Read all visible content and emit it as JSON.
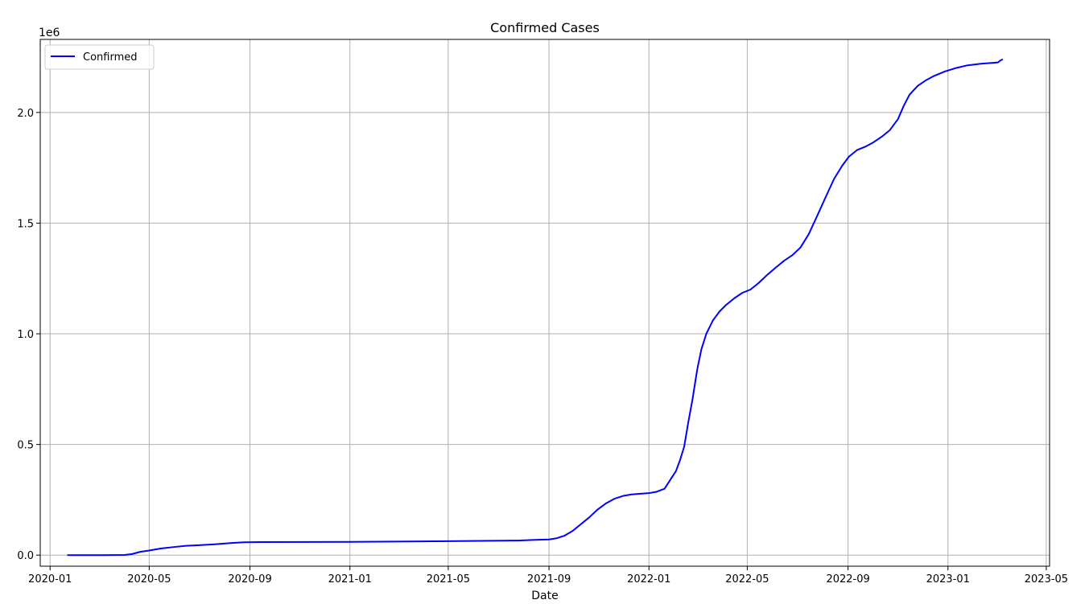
{
  "chart_data": {
    "type": "line",
    "title": "Confirmed Cases",
    "xlabel": "Date",
    "ylabel": "",
    "y_offset_label": "1e6",
    "y_multiplier": 1000000,
    "xlim": [
      "2019-12-20",
      "2023-05-05"
    ],
    "ylim": [
      -0.05,
      2.33
    ],
    "x_ticks": [
      "2020-01",
      "2020-05",
      "2020-09",
      "2021-01",
      "2021-05",
      "2021-09",
      "2022-01",
      "2022-05",
      "2022-09",
      "2023-01",
      "2023-05"
    ],
    "y_ticks": [
      "0.0",
      "0.5",
      "1.0",
      "1.5",
      "2.0"
    ],
    "grid": true,
    "legend_position": "top-left",
    "series": [
      {
        "name": "Confirmed",
        "color": "#0000ff",
        "points": [
          [
            "2020-01-22",
            0.0
          ],
          [
            "2020-03-01",
            0.0
          ],
          [
            "2020-04-01",
            0.001
          ],
          [
            "2020-04-10",
            0.005
          ],
          [
            "2020-04-20",
            0.015
          ],
          [
            "2020-05-01",
            0.021
          ],
          [
            "2020-05-15",
            0.03
          ],
          [
            "2020-06-01",
            0.037
          ],
          [
            "2020-06-15",
            0.042
          ],
          [
            "2020-07-01",
            0.045
          ],
          [
            "2020-07-20",
            0.049
          ],
          [
            "2020-08-10",
            0.055
          ],
          [
            "2020-08-25",
            0.058
          ],
          [
            "2020-09-15",
            0.059
          ],
          [
            "2021-01-01",
            0.06
          ],
          [
            "2021-05-01",
            0.063
          ],
          [
            "2021-07-25",
            0.066
          ],
          [
            "2021-08-15",
            0.069
          ],
          [
            "2021-09-01",
            0.071
          ],
          [
            "2021-09-10",
            0.076
          ],
          [
            "2021-09-20",
            0.088
          ],
          [
            "2021-09-30",
            0.11
          ],
          [
            "2021-10-10",
            0.14
          ],
          [
            "2021-10-20",
            0.17
          ],
          [
            "2021-10-30",
            0.205
          ],
          [
            "2021-11-10",
            0.235
          ],
          [
            "2021-11-20",
            0.255
          ],
          [
            "2021-12-01",
            0.268
          ],
          [
            "2021-12-10",
            0.274
          ],
          [
            "2021-12-20",
            0.277
          ],
          [
            "2022-01-01",
            0.28
          ],
          [
            "2022-01-10",
            0.286
          ],
          [
            "2022-01-20",
            0.3
          ],
          [
            "2022-01-27",
            0.34
          ],
          [
            "2022-02-03",
            0.38
          ],
          [
            "2022-02-08",
            0.43
          ],
          [
            "2022-02-13",
            0.49
          ],
          [
            "2022-02-18",
            0.6
          ],
          [
            "2022-02-23",
            0.7
          ],
          [
            "2022-03-01",
            0.84
          ],
          [
            "2022-03-06",
            0.93
          ],
          [
            "2022-03-12",
            1.0
          ],
          [
            "2022-03-20",
            1.06
          ],
          [
            "2022-03-28",
            1.1
          ],
          [
            "2022-04-05",
            1.13
          ],
          [
            "2022-04-15",
            1.16
          ],
          [
            "2022-04-25",
            1.185
          ],
          [
            "2022-05-05",
            1.2
          ],
          [
            "2022-05-15",
            1.23
          ],
          [
            "2022-05-25",
            1.265
          ],
          [
            "2022-06-05",
            1.3
          ],
          [
            "2022-06-15",
            1.33
          ],
          [
            "2022-06-25",
            1.355
          ],
          [
            "2022-07-05",
            1.39
          ],
          [
            "2022-07-15",
            1.45
          ],
          [
            "2022-07-25",
            1.53
          ],
          [
            "2022-08-05",
            1.62
          ],
          [
            "2022-08-15",
            1.7
          ],
          [
            "2022-08-25",
            1.76
          ],
          [
            "2022-09-02",
            1.8
          ],
          [
            "2022-09-12",
            1.83
          ],
          [
            "2022-09-22",
            1.845
          ],
          [
            "2022-10-02",
            1.865
          ],
          [
            "2022-10-12",
            1.89
          ],
          [
            "2022-10-22",
            1.92
          ],
          [
            "2022-11-01",
            1.97
          ],
          [
            "2022-11-08",
            2.03
          ],
          [
            "2022-11-15",
            2.08
          ],
          [
            "2022-11-25",
            2.12
          ],
          [
            "2022-12-05",
            2.145
          ],
          [
            "2022-12-15",
            2.165
          ],
          [
            "2022-12-28",
            2.185
          ],
          [
            "2023-01-10",
            2.2
          ],
          [
            "2023-01-25",
            2.213
          ],
          [
            "2023-02-10",
            2.22
          ],
          [
            "2023-02-25",
            2.224
          ],
          [
            "2023-03-03",
            2.226
          ],
          [
            "2023-03-06",
            2.235
          ],
          [
            "2023-03-09",
            2.24
          ]
        ]
      }
    ]
  }
}
